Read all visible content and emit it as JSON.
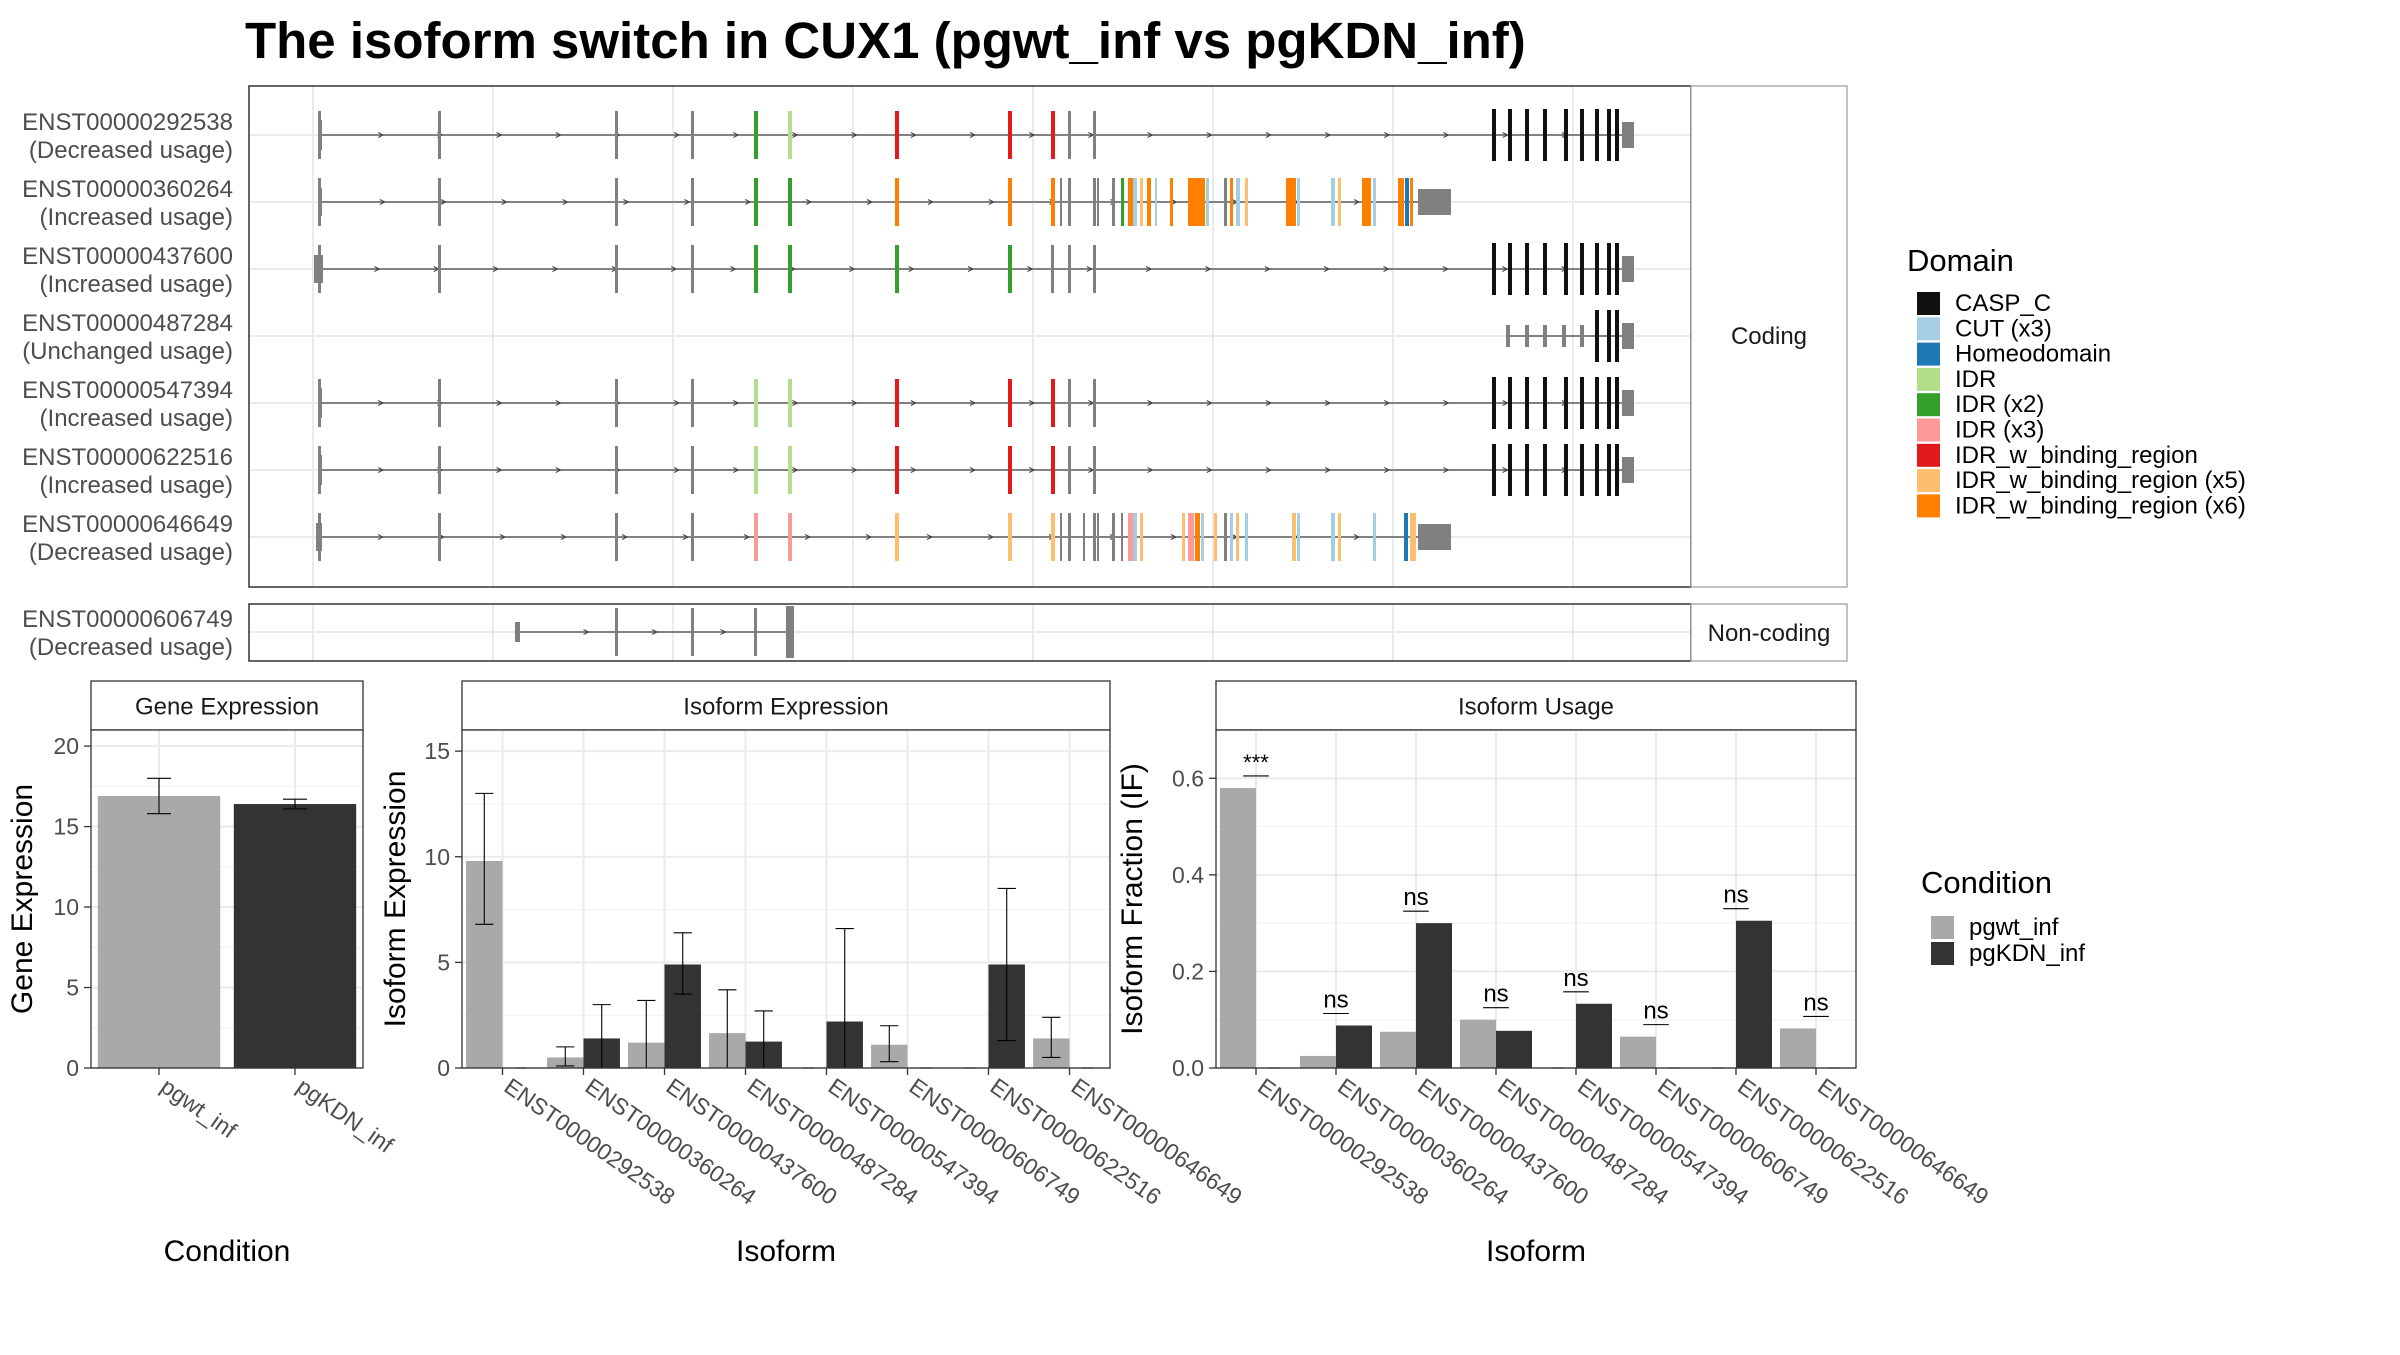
{
  "title": "The isoform switch in CUX1 (pgwt_inf vs pgKDN_inf)",
  "colors": {
    "pgwt_inf": "#A9A9A9",
    "pgKDN_inf": "#333333",
    "grid": "#EBEBEB",
    "strip_bg": "#FFFFFF",
    "exon": "#808080"
  },
  "structure": {
    "coding_label": "Coding",
    "noncoding_label": "Non-coding",
    "coding_rows": [
      {
        "id": "ENST00000292538",
        "usage": "(Decreased usage)"
      },
      {
        "id": "ENST00000360264",
        "usage": "(Increased usage)"
      },
      {
        "id": "ENST00000437600",
        "usage": "(Increased usage)"
      },
      {
        "id": "ENST00000487284",
        "usage": "(Unchanged usage)"
      },
      {
        "id": "ENST00000547394",
        "usage": "(Increased usage)"
      },
      {
        "id": "ENST00000622516",
        "usage": "(Increased usage)"
      },
      {
        "id": "ENST00000646649",
        "usage": "(Decreased usage)"
      }
    ],
    "noncoding_rows": [
      {
        "id": "ENST00000606749",
        "usage": "(Decreased usage)"
      }
    ]
  },
  "domain_legend": {
    "title": "Domain",
    "items": [
      {
        "label": "CASP_C",
        "color": "#111111"
      },
      {
        "label": "CUT (x3)",
        "color": "#A6CEE3"
      },
      {
        "label": "Homeodomain",
        "color": "#1F78B4"
      },
      {
        "label": "IDR",
        "color": "#B2DF8A"
      },
      {
        "label": "IDR (x2)",
        "color": "#33A02C"
      },
      {
        "label": "IDR (x3)",
        "color": "#FB9A99"
      },
      {
        "label": "IDR_w_binding_region",
        "color": "#E31A1C"
      },
      {
        "label": "IDR_w_binding_region (x5)",
        "color": "#FDBF6F"
      },
      {
        "label": "IDR_w_binding_region (x6)",
        "color": "#FF7F00"
      }
    ]
  },
  "condition_legend": {
    "title": "Condition",
    "items": [
      {
        "label": "pgwt_inf",
        "color": "#A9A9A9"
      },
      {
        "label": "pgKDN_inf",
        "color": "#333333"
      }
    ]
  },
  "chart_data": [
    {
      "type": "bar",
      "title": "Gene Expression",
      "xlabel": "Condition",
      "ylabel": "Gene Expression",
      "categories": [
        "pgwt_inf",
        "pgKDN_inf"
      ],
      "values": [
        16.9,
        16.4
      ],
      "errors": [
        [
          15.8,
          18.0
        ],
        [
          16.1,
          16.7
        ]
      ],
      "ylim": [
        0,
        21
      ],
      "yticks": [
        0,
        5,
        10,
        15,
        20
      ],
      "grid": true
    },
    {
      "type": "bar",
      "title": "Isoform Expression",
      "xlabel": "Isoform",
      "ylabel": "Isoform Expression",
      "categories": [
        "ENST00000292538",
        "ENST00000360264",
        "ENST00000437600",
        "ENST00000487284",
        "ENST00000547394",
        "ENST00000606749",
        "ENST00000622516",
        "ENST00000646649"
      ],
      "series": [
        {
          "name": "pgwt_inf",
          "values": [
            9.8,
            0.5,
            1.2,
            1.65,
            0.0,
            1.1,
            0.0,
            1.4
          ],
          "errors": [
            [
              6.8,
              13.0
            ],
            [
              0.1,
              1.0
            ],
            [
              0.0,
              3.2
            ],
            [
              0.0,
              3.7
            ],
            [
              0.0,
              0.0
            ],
            [
              0.3,
              2.0
            ],
            [
              0.0,
              0.0
            ],
            [
              0.5,
              2.4
            ]
          ]
        },
        {
          "name": "pgKDN_inf",
          "values": [
            0.0,
            1.4,
            4.9,
            1.25,
            2.2,
            0.0,
            4.9,
            0.0
          ],
          "errors": [
            [
              0.0,
              0.0
            ],
            [
              0.0,
              3.0
            ],
            [
              3.5,
              6.4
            ],
            [
              0.0,
              2.7
            ],
            [
              0.0,
              6.6
            ],
            [
              0.0,
              0.0
            ],
            [
              1.3,
              8.5
            ],
            [
              0.0,
              0.0
            ]
          ]
        }
      ],
      "ylim": [
        0,
        16
      ],
      "yticks": [
        0,
        5,
        10,
        15
      ],
      "grid": true
    },
    {
      "type": "bar",
      "title": "Isoform Usage",
      "xlabel": "Isoform",
      "ylabel": "Isoform Fraction (IF)",
      "categories": [
        "ENST00000292538",
        "ENST00000360264",
        "ENST00000437600",
        "ENST00000487284",
        "ENST00000547394",
        "ENST00000606749",
        "ENST00000622516",
        "ENST00000646649"
      ],
      "series": [
        {
          "name": "pgwt_inf",
          "values": [
            0.58,
            0.025,
            0.075,
            0.1,
            0.0,
            0.065,
            0.0,
            0.082
          ]
        },
        {
          "name": "pgKDN_inf",
          "values": [
            0.0,
            0.088,
            0.3,
            0.077,
            0.133,
            0.0,
            0.305,
            0.0
          ]
        }
      ],
      "significance": [
        "***",
        "ns",
        "ns",
        "ns",
        "ns",
        "ns",
        "ns",
        "ns"
      ],
      "ylim": [
        0,
        0.7
      ],
      "yticks": [
        "0.0",
        "0.2",
        "0.4",
        "0.6"
      ],
      "grid": true
    }
  ]
}
